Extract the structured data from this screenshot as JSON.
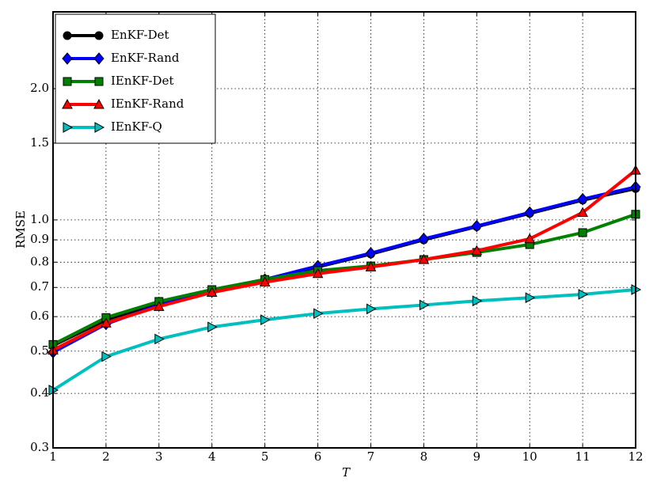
{
  "chart_data": {
    "type": "line",
    "x_label": "T",
    "y_label": "RMSE",
    "log_y": true,
    "grid": true,
    "legend": "upper left",
    "x": [
      1,
      2,
      3,
      4,
      5,
      6,
      7,
      8,
      9,
      10,
      11,
      12
    ],
    "xlim": [
      1,
      12
    ],
    "xticks": [
      1,
      2,
      3,
      4,
      5,
      6,
      7,
      8,
      9,
      10,
      11,
      12
    ],
    "ylim": [
      0.3,
      3.0
    ],
    "yticks": [
      0.3,
      0.4,
      0.5,
      0.6,
      0.7,
      0.8,
      0.9,
      {
        "value": 1,
        "label": "1.0"
      },
      1.5,
      {
        "value": 2,
        "label": "2.0"
      }
    ],
    "series": [
      {
        "name": "EnKF-Det",
        "color": "#000000",
        "marker": "circle",
        "values": [
          0.515,
          0.59,
          0.645,
          0.69,
          0.73,
          0.78,
          0.835,
          0.9,
          0.965,
          1.035,
          1.11,
          1.18
        ]
      },
      {
        "name": "EnKF-Rand",
        "color": "#0000ff",
        "marker": "diamond",
        "values": [
          0.497,
          0.577,
          0.638,
          0.685,
          0.73,
          0.784,
          0.839,
          0.905,
          0.968,
          1.04,
          1.116,
          1.19
        ]
      },
      {
        "name": "IEnKF-Det",
        "color": "#008000",
        "marker": "square",
        "values": [
          0.518,
          0.597,
          0.65,
          0.692,
          0.73,
          0.765,
          0.784,
          0.811,
          0.842,
          0.878,
          0.935,
          1.03
        ]
      },
      {
        "name": "IEnKF-Rand",
        "color": "#ff0000",
        "marker": "triangle",
        "values": [
          0.503,
          0.58,
          0.633,
          0.682,
          0.72,
          0.753,
          0.78,
          0.811,
          0.85,
          0.905,
          1.04,
          1.3
        ]
      },
      {
        "name": "IEnKF-Q",
        "color": "#00bfbf",
        "marker": "triangle-right",
        "values": [
          0.407,
          0.486,
          0.533,
          0.568,
          0.59,
          0.61,
          0.625,
          0.638,
          0.652,
          0.663,
          0.675,
          0.692
        ]
      }
    ]
  }
}
